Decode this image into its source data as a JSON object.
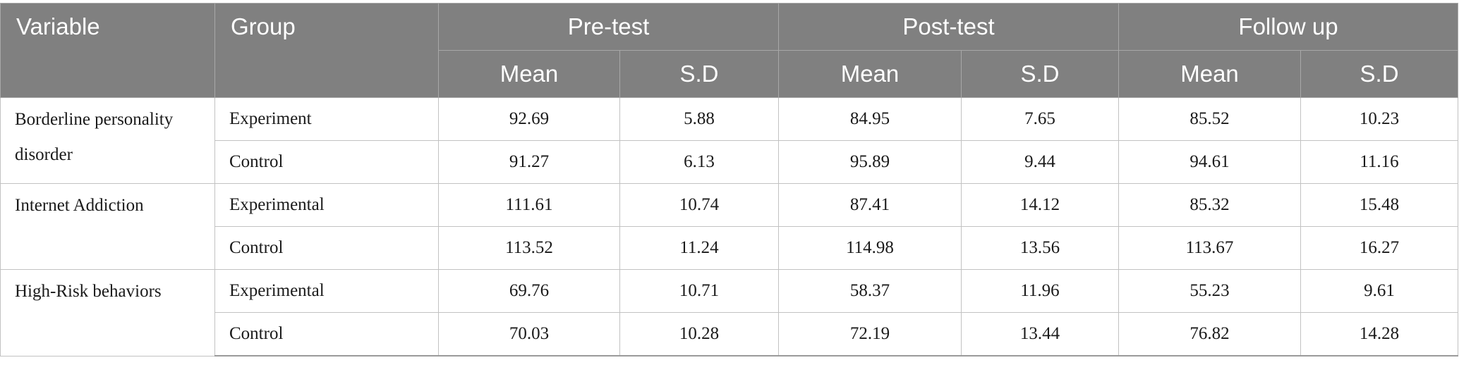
{
  "header": {
    "variable": "Variable",
    "group": "Group",
    "pre_test": "Pre-test",
    "post_test": "Post-test",
    "follow_up": "Follow up",
    "mean": "Mean",
    "sd": "S.D"
  },
  "rows": [
    {
      "variable": "Borderline personality disorder",
      "groups": [
        {
          "group": "Experiment",
          "pre_mean": "92.69",
          "pre_sd": "5.88",
          "post_mean": "84.95",
          "post_sd": "7.65",
          "fu_mean": "85.52",
          "fu_sd": "10.23"
        },
        {
          "group": "Control",
          "pre_mean": "91.27",
          "pre_sd": "6.13",
          "post_mean": "95.89",
          "post_sd": "9.44",
          "fu_mean": "94.61",
          "fu_sd": "11.16"
        }
      ]
    },
    {
      "variable": "Internet Addiction",
      "groups": [
        {
          "group": "Experimental",
          "pre_mean": "111.61",
          "pre_sd": "10.74",
          "post_mean": "87.41",
          "post_sd": "14.12",
          "fu_mean": "85.32",
          "fu_sd": "15.48"
        },
        {
          "group": "Control",
          "pre_mean": "113.52",
          "pre_sd": "11.24",
          "post_mean": "114.98",
          "post_sd": "13.56",
          "fu_mean": "113.67",
          "fu_sd": "16.27"
        }
      ]
    },
    {
      "variable": "High-Risk behaviors",
      "groups": [
        {
          "group": "Experimental",
          "pre_mean": "69.76",
          "pre_sd": "10.71",
          "post_mean": "58.37",
          "post_sd": "11.96",
          "fu_mean": "55.23",
          "fu_sd": "9.61"
        },
        {
          "group": "Control",
          "pre_mean": "70.03",
          "pre_sd": "10.28",
          "post_mean": "72.19",
          "post_sd": "13.44",
          "fu_mean": "76.82",
          "fu_sd": "14.28"
        }
      ]
    }
  ]
}
